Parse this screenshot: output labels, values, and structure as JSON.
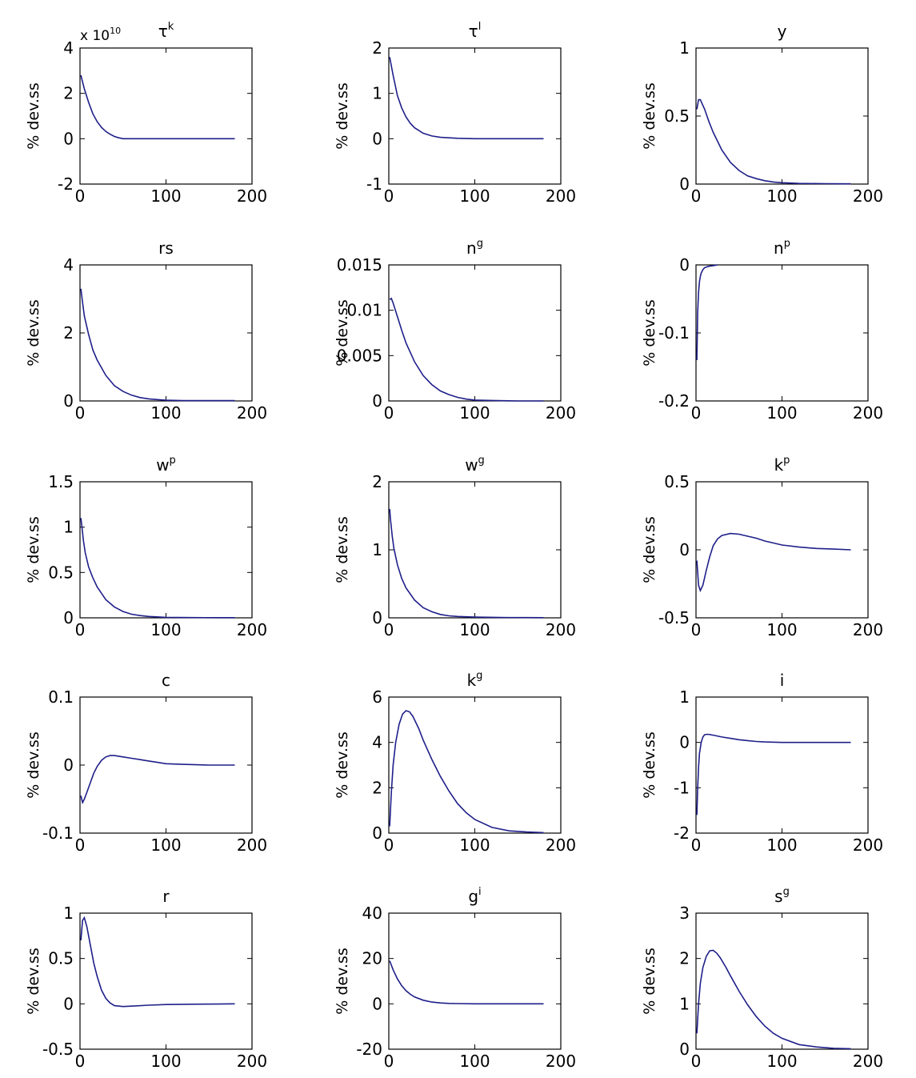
{
  "colors": {
    "line": "#1f1f8a",
    "axes": "#000000",
    "background": "#ffffff"
  },
  "chart_data": [
    {
      "type": "line",
      "title": "τ",
      "title_sup": "k",
      "ylabel": "% dev.ss",
      "xlim": [
        0,
        200
      ],
      "xticks": [
        0,
        100,
        200
      ],
      "xticklabels": [
        "0",
        "100",
        "200"
      ],
      "ylim": [
        -2,
        4
      ],
      "yticks": [
        -2,
        0,
        2,
        4
      ],
      "yticklabels": [
        "-2",
        "0",
        "2",
        "4"
      ],
      "exponent_base": "x 10",
      "exponent_power": "10",
      "series": [
        {
          "x": [
            1,
            5,
            10,
            15,
            20,
            25,
            30,
            35,
            40,
            45,
            50,
            60,
            80,
            100,
            130,
            160,
            180
          ],
          "y": [
            2.8,
            2.2,
            1.6,
            1.1,
            0.75,
            0.5,
            0.32,
            0.2,
            0.1,
            0.04,
            0,
            0,
            0,
            0,
            0,
            0,
            0
          ]
        }
      ]
    },
    {
      "type": "line",
      "title": "τ",
      "title_sup": "l",
      "ylabel": "% dev.ss",
      "xlim": [
        0,
        200
      ],
      "xticks": [
        0,
        100,
        200
      ],
      "xticklabels": [
        "0",
        "100",
        "200"
      ],
      "ylim": [
        -1,
        2
      ],
      "yticks": [
        -1,
        0,
        1,
        2
      ],
      "yticklabels": [
        "-1",
        "0",
        "1",
        "2"
      ],
      "series": [
        {
          "x": [
            1,
            5,
            10,
            15,
            20,
            25,
            30,
            40,
            50,
            60,
            70,
            80,
            100,
            130,
            160,
            180
          ],
          "y": [
            1.8,
            1.4,
            0.95,
            0.68,
            0.48,
            0.34,
            0.24,
            0.12,
            0.06,
            0.03,
            0.02,
            0.01,
            0,
            0,
            0,
            0
          ]
        }
      ]
    },
    {
      "type": "line",
      "title": "y",
      "ylabel": "% dev.ss",
      "xlim": [
        0,
        200
      ],
      "xticks": [
        0,
        100,
        200
      ],
      "xticklabels": [
        "0",
        "100",
        "200"
      ],
      "ylim": [
        0,
        1
      ],
      "yticks": [
        0,
        0.5,
        1
      ],
      "yticklabels": [
        "0",
        "0.5",
        "1"
      ],
      "series": [
        {
          "x": [
            1,
            3,
            5,
            10,
            15,
            20,
            30,
            40,
            50,
            60,
            70,
            80,
            90,
            100,
            120,
            150,
            180
          ],
          "y": [
            0.55,
            0.62,
            0.62,
            0.55,
            0.46,
            0.38,
            0.25,
            0.16,
            0.1,
            0.06,
            0.04,
            0.025,
            0.015,
            0.01,
            0.005,
            0.003,
            0.002
          ]
        }
      ]
    },
    {
      "type": "line",
      "title": "rs",
      "ylabel": "% dev.ss",
      "xlim": [
        0,
        200
      ],
      "xticks": [
        0,
        100,
        200
      ],
      "xticklabels": [
        "0",
        "100",
        "200"
      ],
      "ylim": [
        0,
        4
      ],
      "yticks": [
        0,
        2,
        4
      ],
      "yticklabels": [
        "0",
        "2",
        "4"
      ],
      "series": [
        {
          "x": [
            1,
            3,
            5,
            10,
            15,
            20,
            30,
            40,
            50,
            60,
            70,
            80,
            90,
            100,
            120,
            150,
            180
          ],
          "y": [
            3.3,
            2.9,
            2.5,
            1.95,
            1.5,
            1.2,
            0.75,
            0.45,
            0.28,
            0.17,
            0.1,
            0.06,
            0.04,
            0.02,
            0.01,
            0.01,
            0.01
          ]
        }
      ]
    },
    {
      "type": "line",
      "title": "n",
      "title_sup": "g",
      "ylabel": "% dev.ss",
      "xlim": [
        0,
        200
      ],
      "xticks": [
        0,
        100,
        200
      ],
      "xticklabels": [
        "0",
        "100",
        "200"
      ],
      "ylim": [
        0,
        0.015
      ],
      "yticks": [
        0,
        0.005,
        0.01,
        0.015
      ],
      "yticklabels": [
        "0",
        "0.005",
        "0.01",
        "0.015"
      ],
      "series": [
        {
          "x": [
            1,
            3,
            5,
            10,
            15,
            20,
            30,
            40,
            50,
            60,
            70,
            80,
            90,
            100,
            120,
            150,
            180
          ],
          "y": [
            0.0112,
            0.0113,
            0.0108,
            0.0093,
            0.0078,
            0.0064,
            0.0043,
            0.0028,
            0.0018,
            0.0011,
            0.0007,
            0.0004,
            0.0002,
            0.0001,
            5e-05,
            0,
            0
          ]
        }
      ]
    },
    {
      "type": "line",
      "title": "n",
      "title_sup": "p",
      "ylabel": "% dev.ss",
      "xlim": [
        0,
        200
      ],
      "xticks": [
        0,
        100,
        200
      ],
      "xticklabels": [
        "0",
        "100",
        "200"
      ],
      "ylim": [
        -0.2,
        0
      ],
      "yticks": [
        -0.2,
        -0.1,
        0
      ],
      "yticklabels": [
        "-0.2",
        "-0.1",
        "0"
      ],
      "series": [
        {
          "x": [
            1,
            2,
            3,
            4,
            5,
            6,
            8,
            10,
            15,
            20,
            25
          ],
          "y": [
            -0.14,
            -0.07,
            -0.04,
            -0.025,
            -0.017,
            -0.012,
            -0.007,
            -0.004,
            -0.002,
            -0.001,
            0
          ]
        }
      ]
    },
    {
      "type": "line",
      "title": "w",
      "title_sup": "p",
      "ylabel": "% dev.ss",
      "xlim": [
        0,
        200
      ],
      "xticks": [
        0,
        100,
        200
      ],
      "xticklabels": [
        "0",
        "100",
        "200"
      ],
      "ylim": [
        0,
        1.5
      ],
      "yticks": [
        0,
        0.5,
        1,
        1.5
      ],
      "yticklabels": [
        "0",
        "0.5",
        "1",
        "1.5"
      ],
      "series": [
        {
          "x": [
            1,
            2,
            4,
            6,
            10,
            15,
            20,
            30,
            40,
            50,
            60,
            70,
            80,
            100,
            130,
            160,
            180
          ],
          "y": [
            1.1,
            1.02,
            0.85,
            0.72,
            0.56,
            0.44,
            0.34,
            0.2,
            0.12,
            0.07,
            0.04,
            0.025,
            0.015,
            0.005,
            0.003,
            0.002,
            0.002
          ]
        }
      ]
    },
    {
      "type": "line",
      "title": "w",
      "title_sup": "g",
      "ylabel": "% dev.ss",
      "xlim": [
        0,
        200
      ],
      "xticks": [
        0,
        100,
        200
      ],
      "xticklabels": [
        "0",
        "100",
        "200"
      ],
      "ylim": [
        0,
        2
      ],
      "yticks": [
        0,
        1,
        2
      ],
      "yticklabels": [
        "0",
        "1",
        "2"
      ],
      "series": [
        {
          "x": [
            1,
            2,
            4,
            6,
            10,
            15,
            20,
            30,
            40,
            50,
            60,
            70,
            80,
            100,
            130,
            160,
            180
          ],
          "y": [
            1.6,
            1.45,
            1.2,
            1.02,
            0.78,
            0.58,
            0.44,
            0.26,
            0.15,
            0.09,
            0.05,
            0.03,
            0.02,
            0.01,
            0.005,
            0.003,
            0.002
          ]
        }
      ]
    },
    {
      "type": "line",
      "title": "k",
      "title_sup": "p",
      "ylabel": "% dev.ss",
      "xlim": [
        0,
        200
      ],
      "xticks": [
        0,
        100,
        200
      ],
      "xticklabels": [
        "0",
        "100",
        "200"
      ],
      "ylim": [
        -0.5,
        0.5
      ],
      "yticks": [
        -0.5,
        0,
        0.5
      ],
      "yticklabels": [
        "-0.5",
        "0",
        "0.5"
      ],
      "series": [
        {
          "x": [
            1,
            3,
            5,
            8,
            12,
            16,
            20,
            25,
            30,
            40,
            50,
            60,
            70,
            80,
            90,
            100,
            120,
            140,
            160,
            180
          ],
          "y": [
            -0.08,
            -0.26,
            -0.3,
            -0.26,
            -0.15,
            -0.05,
            0.03,
            0.08,
            0.105,
            0.12,
            0.115,
            0.1,
            0.085,
            0.065,
            0.05,
            0.035,
            0.02,
            0.01,
            0.005,
            0
          ]
        }
      ]
    },
    {
      "type": "line",
      "title": "c",
      "ylabel": "% dev.ss",
      "xlim": [
        0,
        200
      ],
      "xticks": [
        0,
        100,
        200
      ],
      "xticklabels": [
        "0",
        "100",
        "200"
      ],
      "ylim": [
        -0.1,
        0.1
      ],
      "yticks": [
        -0.1,
        0,
        0.1
      ],
      "yticklabels": [
        "-0.1",
        "0",
        "0.1"
      ],
      "series": [
        {
          "x": [
            1,
            3,
            5,
            8,
            12,
            16,
            20,
            25,
            30,
            35,
            40,
            50,
            60,
            70,
            80,
            90,
            100,
            120,
            150,
            180
          ],
          "y": [
            -0.045,
            -0.055,
            -0.05,
            -0.04,
            -0.026,
            -0.012,
            -0.002,
            0.007,
            0.012,
            0.014,
            0.014,
            0.012,
            0.01,
            0.008,
            0.006,
            0.004,
            0.002,
            0.001,
            0,
            0
          ]
        }
      ]
    },
    {
      "type": "line",
      "title": "k",
      "title_sup": "g",
      "ylabel": "% dev.ss",
      "xlim": [
        0,
        200
      ],
      "xticks": [
        0,
        100,
        200
      ],
      "xticklabels": [
        "0",
        "100",
        "200"
      ],
      "ylim": [
        0,
        6
      ],
      "yticks": [
        0,
        2,
        4,
        6
      ],
      "yticklabels": [
        "0",
        "2",
        "4",
        "6"
      ],
      "series": [
        {
          "x": [
            1,
            3,
            5,
            8,
            12,
            16,
            20,
            24,
            28,
            35,
            40,
            50,
            60,
            70,
            80,
            90,
            100,
            120,
            140,
            160,
            180
          ],
          "y": [
            0.3,
            1.8,
            3.0,
            4.0,
            4.8,
            5.25,
            5.4,
            5.35,
            5.15,
            4.6,
            4.1,
            3.25,
            2.5,
            1.85,
            1.3,
            0.9,
            0.6,
            0.25,
            0.1,
            0.05,
            0.02
          ]
        }
      ]
    },
    {
      "type": "line",
      "title": "i",
      "ylabel": "% dev.ss",
      "xlim": [
        0,
        200
      ],
      "xticks": [
        0,
        100,
        200
      ],
      "xticklabels": [
        "0",
        "100",
        "200"
      ],
      "ylim": [
        -2,
        1
      ],
      "yticks": [
        -2,
        -1,
        0,
        1
      ],
      "yticklabels": [
        "-2",
        "-1",
        "0",
        "1"
      ],
      "series": [
        {
          "x": [
            1,
            2,
            3,
            4,
            6,
            8,
            10,
            14,
            20,
            30,
            40,
            50,
            60,
            70,
            80,
            100,
            130,
            160,
            180
          ],
          "y": [
            -1.6,
            -1.0,
            -0.55,
            -0.25,
            0.0,
            0.12,
            0.17,
            0.18,
            0.16,
            0.12,
            0.09,
            0.06,
            0.04,
            0.02,
            0.01,
            0,
            0,
            0,
            0
          ]
        }
      ]
    },
    {
      "type": "line",
      "title": "r",
      "ylabel": "% dev.ss",
      "xlim": [
        0,
        200
      ],
      "xticks": [
        0,
        100,
        200
      ],
      "xticklabels": [
        "0",
        "100",
        "200"
      ],
      "ylim": [
        -0.5,
        1
      ],
      "yticks": [
        -0.5,
        0,
        0.5,
        1
      ],
      "yticklabels": [
        "-0.5",
        "0",
        "0.5",
        "1"
      ],
      "series": [
        {
          "x": [
            1,
            3,
            5,
            8,
            12,
            16,
            20,
            25,
            30,
            35,
            40,
            50,
            60,
            80,
            100,
            130,
            160,
            180
          ],
          "y": [
            0.7,
            0.92,
            0.95,
            0.85,
            0.65,
            0.45,
            0.3,
            0.15,
            0.06,
            0.01,
            -0.02,
            -0.03,
            -0.025,
            -0.015,
            -0.008,
            -0.004,
            -0.002,
            0
          ]
        }
      ]
    },
    {
      "type": "line",
      "title": "g",
      "title_sup": "i",
      "ylabel": "% dev.ss",
      "xlim": [
        0,
        200
      ],
      "xticks": [
        0,
        100,
        200
      ],
      "xticklabels": [
        "0",
        "100",
        "200"
      ],
      "ylim": [
        -20,
        40
      ],
      "yticks": [
        -20,
        0,
        20,
        40
      ],
      "yticklabels": [
        "-20",
        "0",
        "20",
        "40"
      ],
      "series": [
        {
          "x": [
            1,
            5,
            10,
            15,
            20,
            25,
            30,
            40,
            50,
            60,
            70,
            80,
            100,
            130,
            160,
            180
          ],
          "y": [
            19,
            15,
            11,
            8,
            5.8,
            4.2,
            3.0,
            1.6,
            0.8,
            0.4,
            0.2,
            0.1,
            0,
            0,
            0,
            0
          ]
        }
      ]
    },
    {
      "type": "line",
      "title": "s",
      "title_sup": "g",
      "ylabel": "% dev.ss",
      "xlim": [
        0,
        200
      ],
      "xticks": [
        0,
        100,
        200
      ],
      "xticklabels": [
        "0",
        "100",
        "200"
      ],
      "ylim": [
        0,
        3
      ],
      "yticks": [
        0,
        1,
        2,
        3
      ],
      "yticklabels": [
        "0",
        "1",
        "2",
        "3"
      ],
      "series": [
        {
          "x": [
            1,
            3,
            5,
            8,
            12,
            16,
            20,
            24,
            28,
            35,
            40,
            50,
            60,
            70,
            80,
            90,
            100,
            120,
            140,
            160,
            180
          ],
          "y": [
            0.35,
            1.0,
            1.45,
            1.8,
            2.05,
            2.17,
            2.18,
            2.12,
            2.02,
            1.8,
            1.62,
            1.28,
            0.98,
            0.72,
            0.51,
            0.35,
            0.24,
            0.1,
            0.05,
            0.02,
            0.01
          ]
        }
      ]
    }
  ]
}
